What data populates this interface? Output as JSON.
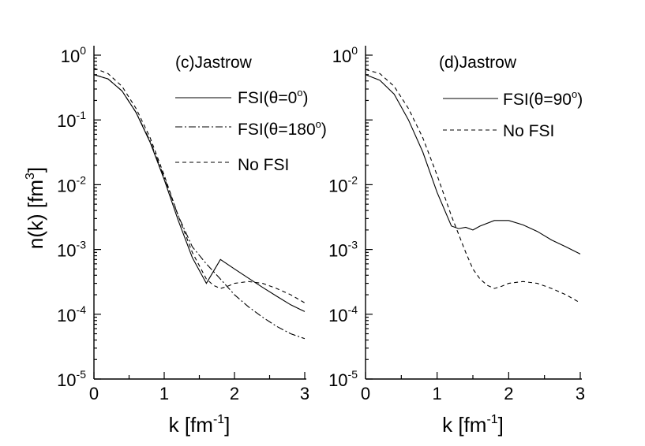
{
  "y_title": "n(k) [fm",
  "y_title_sup": "3",
  "y_title_end": "]",
  "chart_data": [
    {
      "type": "line",
      "panel_label": "(c)Jastrow",
      "xlabel_main": "k [fm",
      "xlabel_sup": "-1",
      "xlabel_end": "]",
      "ylabel": "n(k) [fm3]",
      "xlim": [
        0,
        3
      ],
      "ylim": [
        1e-05,
        1
      ],
      "yscale": "log",
      "x_ticks": [
        "0",
        "1",
        "2",
        "3"
      ],
      "y_ticks": [
        {
          "base": "10",
          "exp": "0"
        },
        {
          "base": "10",
          "exp": "-1"
        },
        {
          "base": "10",
          "exp": "-2"
        },
        {
          "base": "10",
          "exp": "-3"
        },
        {
          "base": "10",
          "exp": "-4"
        },
        {
          "base": "10",
          "exp": "-5"
        }
      ],
      "legend_position": "top-right",
      "series": [
        {
          "name_main": "FSI(θ=0",
          "name_sup": "o",
          "name_end": ")",
          "style": "solid",
          "x": [
            0,
            0.2,
            0.4,
            0.6,
            0.8,
            1.0,
            1.2,
            1.4,
            1.6,
            1.8,
            2.0,
            2.2,
            2.4,
            2.6,
            2.8,
            3.0
          ],
          "y": [
            0.5,
            0.43,
            0.28,
            0.13,
            0.045,
            0.012,
            0.0028,
            0.00075,
            0.0003,
            0.0007,
            0.0005,
            0.00036,
            0.00026,
            0.00019,
            0.00014,
            0.00011
          ]
        },
        {
          "name_main": "FSI(θ=180",
          "name_sup": "o",
          "name_end": ")",
          "style": "dashdot",
          "x": [
            0,
            0.2,
            0.4,
            0.6,
            0.8,
            1.0,
            1.2,
            1.4,
            1.6,
            1.8,
            2.0,
            2.2,
            2.4,
            2.6,
            2.8,
            3.0
          ],
          "y": [
            0.5,
            0.43,
            0.28,
            0.13,
            0.047,
            0.013,
            0.0033,
            0.0011,
            0.0006,
            0.00035,
            0.0002,
            0.00013,
            9e-05,
            6.5e-05,
            5e-05,
            4.2e-05
          ]
        },
        {
          "name_main": "No FSI",
          "name_sup": "",
          "name_end": "",
          "style": "dashed",
          "x": [
            0,
            0.2,
            0.4,
            0.6,
            0.8,
            1.0,
            1.2,
            1.4,
            1.6,
            1.7,
            1.8,
            1.9,
            2.0,
            2.2,
            2.4,
            2.6,
            2.8,
            3.0
          ],
          "y": [
            0.63,
            0.52,
            0.33,
            0.15,
            0.053,
            0.014,
            0.0033,
            0.0009,
            0.00035,
            0.00028,
            0.00025,
            0.00027,
            0.0003,
            0.00032,
            0.0003,
            0.00025,
            0.0002,
            0.00015
          ]
        }
      ]
    },
    {
      "type": "line",
      "panel_label": "(d)Jastrow",
      "xlabel_main": "k [fm",
      "xlabel_sup": "-1",
      "xlabel_end": "]",
      "xlim": [
        0,
        3
      ],
      "ylim": [
        1e-05,
        1
      ],
      "yscale": "log",
      "x_ticks": [
        "0",
        "1",
        "2",
        "3"
      ],
      "y_ticks": [
        {
          "base": "10",
          "exp": "0"
        },
        {
          "base": "10",
          "exp": "-2"
        },
        {
          "base": "10",
          "exp": "-3"
        },
        {
          "base": "10",
          "exp": "-4"
        },
        {
          "base": "10",
          "exp": "-5"
        }
      ],
      "legend_position": "top-right",
      "series": [
        {
          "name_main": "FSI(θ=90",
          "name_sup": "o",
          "name_end": ")",
          "style": "solid",
          "x": [
            0,
            0.2,
            0.4,
            0.6,
            0.8,
            1.0,
            1.2,
            1.3,
            1.4,
            1.5,
            1.6,
            1.8,
            2.0,
            2.2,
            2.4,
            2.6,
            2.8,
            3.0
          ],
          "y": [
            0.5,
            0.41,
            0.25,
            0.1,
            0.032,
            0.0076,
            0.0023,
            0.0021,
            0.0022,
            0.002,
            0.0023,
            0.0028,
            0.0028,
            0.0024,
            0.0019,
            0.0014,
            0.0011,
            0.00085
          ]
        },
        {
          "name_main": "No FSI",
          "name_sup": "",
          "name_end": "",
          "style": "dashed",
          "x": [
            0,
            0.2,
            0.4,
            0.6,
            0.8,
            1.0,
            1.2,
            1.4,
            1.5,
            1.6,
            1.7,
            1.8,
            1.9,
            2.0,
            2.2,
            2.4,
            2.6,
            2.8,
            3.0
          ],
          "y": [
            0.6,
            0.52,
            0.33,
            0.15,
            0.053,
            0.014,
            0.0033,
            0.0009,
            0.0005,
            0.00035,
            0.00028,
            0.00025,
            0.00027,
            0.0003,
            0.00032,
            0.0003,
            0.00025,
            0.0002,
            0.00015
          ]
        }
      ]
    }
  ]
}
